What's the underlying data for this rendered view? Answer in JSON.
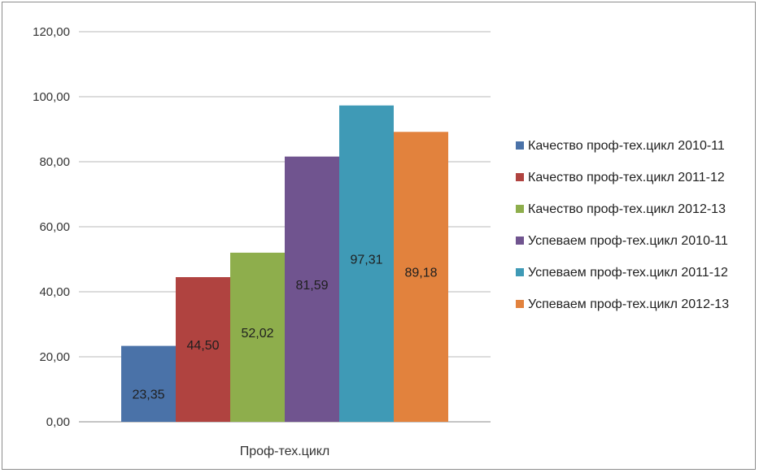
{
  "chart_data": {
    "type": "bar",
    "categories": [
      "Проф-тех.цикл"
    ],
    "ylim": [
      0,
      120
    ],
    "yticks": [
      "0,00",
      "20,00",
      "40,00",
      "60,00",
      "80,00",
      "100,00",
      "120,00"
    ],
    "grid": true,
    "legend_position": "right",
    "series": [
      {
        "name": "Качество проф-тех.цикл 2010-11",
        "values": [
          23.35
        ],
        "label": "23,35",
        "color": "#4a72a8"
      },
      {
        "name": "Качество проф-тех.цикл 2011-12",
        "values": [
          44.5
        ],
        "label": "44,50",
        "color": "#b04340"
      },
      {
        "name": "Качество проф-тех.цикл 2012-13",
        "values": [
          52.02
        ],
        "label": "52,02",
        "color": "#8eae4c"
      },
      {
        "name": "Успеваем проф-тех.цикл 2010-11",
        "values": [
          81.59
        ],
        "label": "81,59",
        "color": "#70548f"
      },
      {
        "name": "Успеваем проф-тех.цикл 2011-12",
        "values": [
          97.31
        ],
        "label": "97,31",
        "color": "#3f9ab6"
      },
      {
        "name": "Успеваем проф-тех.цикл 2012-13",
        "values": [
          89.18
        ],
        "label": "89,18",
        "color": "#e2823d"
      }
    ]
  }
}
